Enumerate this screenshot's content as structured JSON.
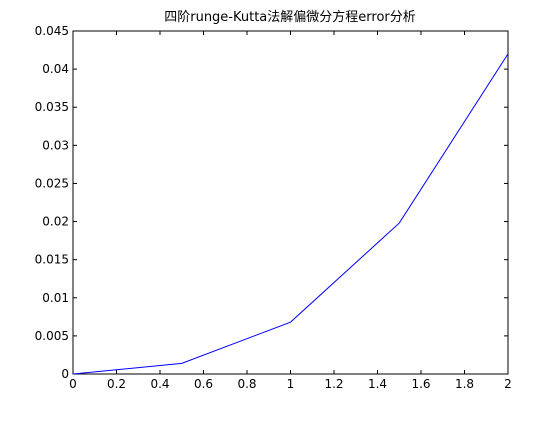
{
  "chart_data": {
    "type": "line",
    "title": "四阶runge-Kutta法解偏微分方程error分析",
    "xlabel": "",
    "ylabel": "",
    "xlim": [
      0,
      2
    ],
    "ylim": [
      0,
      0.045
    ],
    "x_ticks": [
      0,
      0.2,
      0.4,
      0.6,
      0.8,
      1,
      1.2,
      1.4,
      1.6,
      1.8,
      2
    ],
    "x_tick_labels": [
      "0",
      "0.2",
      "0.4",
      "0.6",
      "0.8",
      "1",
      "1.2",
      "1.4",
      "1.6",
      "1.8",
      "2"
    ],
    "y_ticks": [
      0,
      0.005,
      0.01,
      0.015,
      0.02,
      0.025,
      0.03,
      0.035,
      0.04,
      0.045
    ],
    "y_tick_labels": [
      "0",
      "0.005",
      "0.01",
      "0.015",
      "0.02",
      "0.025",
      "0.03",
      "0.035",
      "0.04",
      "0.045"
    ],
    "grid": false,
    "legend": "none",
    "series": [
      {
        "name": "error",
        "color": "#0000ff",
        "x": [
          0,
          0.5,
          1,
          1.5,
          2
        ],
        "values": [
          0,
          0.0014,
          0.0068,
          0.0198,
          0.042
        ]
      }
    ]
  }
}
